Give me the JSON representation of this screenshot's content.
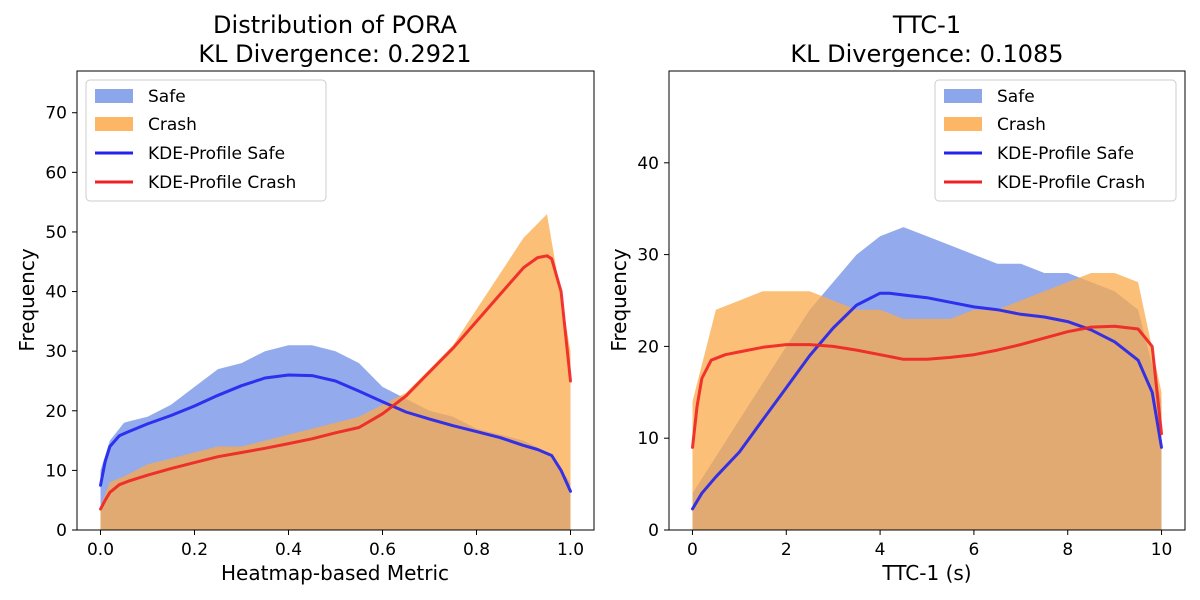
{
  "chart_data": [
    {
      "type": "bar",
      "title": "Distribution of PORA",
      "subtitle": "KL Divergence: 0.2921",
      "xlabel": "Heatmap-based Metric",
      "ylabel": "Frequency",
      "xlim": [
        -0.05,
        1.05
      ],
      "ylim": [
        0,
        77
      ],
      "xticks": [
        "0.0",
        "0.2",
        "0.4",
        "0.6",
        "0.8",
        "1.0"
      ],
      "xtick_values": [
        0,
        0.2,
        0.4,
        0.6,
        0.8,
        1.0
      ],
      "yticks": [
        "0",
        "10",
        "20",
        "30",
        "40",
        "50",
        "60",
        "70"
      ],
      "ytick_values": [
        0,
        10,
        20,
        30,
        40,
        50,
        60,
        70
      ],
      "legend": {
        "position": "top-left",
        "entries": [
          "Safe",
          "Crash",
          "KDE-Profile Safe",
          "KDE-Profile Crash"
        ]
      },
      "series": [
        {
          "name": "Safe",
          "kind": "histogram",
          "color": "#6f8ee6",
          "x": [
            0,
            0.02,
            0.05,
            0.1,
            0.15,
            0.2,
            0.25,
            0.3,
            0.35,
            0.4,
            0.45,
            0.5,
            0.55,
            0.6,
            0.65,
            0.7,
            0.75,
            0.8,
            0.85,
            0.9,
            0.95,
            1.0
          ],
          "values": [
            10,
            15,
            18,
            19,
            21,
            24,
            27,
            28,
            30,
            31,
            31,
            30,
            28,
            24,
            22,
            20,
            19,
            17,
            16,
            15,
            13,
            8
          ]
        },
        {
          "name": "Crash",
          "kind": "histogram",
          "color": "#fba94a",
          "x": [
            0,
            0.02,
            0.05,
            0.1,
            0.15,
            0.2,
            0.25,
            0.3,
            0.35,
            0.4,
            0.45,
            0.5,
            0.55,
            0.6,
            0.65,
            0.7,
            0.75,
            0.8,
            0.85,
            0.9,
            0.95,
            1.0
          ],
          "values": [
            4,
            8,
            9,
            11,
            12,
            13,
            14,
            14,
            15,
            16,
            17,
            18,
            19,
            21,
            23,
            27,
            31,
            37,
            43,
            49,
            53,
            30
          ]
        },
        {
          "name": "KDE-Profile Safe",
          "kind": "line",
          "color": "#2222ee",
          "x": [
            0,
            0.01,
            0.02,
            0.04,
            0.06,
            0.1,
            0.15,
            0.2,
            0.25,
            0.3,
            0.35,
            0.4,
            0.45,
            0.5,
            0.55,
            0.6,
            0.65,
            0.7,
            0.75,
            0.8,
            0.85,
            0.9,
            0.93,
            0.96,
            0.98,
            1.0
          ],
          "values": [
            7.5,
            11.5,
            14,
            15.8,
            16.5,
            17.8,
            19.2,
            20.8,
            22.6,
            24.2,
            25.5,
            26,
            25.9,
            25,
            23.3,
            21.5,
            19.8,
            18.6,
            17.5,
            16.5,
            15.5,
            14.2,
            13.5,
            12.5,
            10,
            6.5
          ]
        },
        {
          "name": "KDE-Profile Crash",
          "kind": "line",
          "color": "#ee2222",
          "x": [
            0,
            0.01,
            0.02,
            0.04,
            0.06,
            0.1,
            0.15,
            0.2,
            0.25,
            0.3,
            0.35,
            0.4,
            0.45,
            0.5,
            0.55,
            0.6,
            0.65,
            0.7,
            0.75,
            0.8,
            0.85,
            0.9,
            0.93,
            0.95,
            0.96,
            0.98,
            1.0
          ],
          "values": [
            3.5,
            5,
            6.3,
            7.6,
            8.2,
            9.2,
            10.3,
            11.3,
            12.3,
            13,
            13.7,
            14.5,
            15.3,
            16.3,
            17.2,
            19.5,
            22.5,
            26.5,
            30.5,
            35,
            39.5,
            44,
            45.7,
            46,
            45.5,
            40,
            25
          ]
        }
      ]
    },
    {
      "type": "bar",
      "title": "TTC-1",
      "subtitle": "KL Divergence: 0.1085",
      "xlabel": "TTC-1 (s)",
      "ylabel": "Frequency",
      "xlim": [
        -0.5,
        10.5
      ],
      "ylim": [
        0,
        50
      ],
      "xticks": [
        "0",
        "2",
        "4",
        "6",
        "8",
        "10"
      ],
      "xtick_values": [
        0,
        2,
        4,
        6,
        8,
        10
      ],
      "yticks": [
        "0",
        "10",
        "20",
        "30",
        "40"
      ],
      "ytick_values": [
        0,
        10,
        20,
        30,
        40
      ],
      "legend": {
        "position": "top-right",
        "entries": [
          "Safe",
          "Crash",
          "KDE-Profile Safe",
          "KDE-Profile Crash"
        ]
      },
      "series": [
        {
          "name": "Safe",
          "kind": "histogram",
          "color": "#6f8ee6",
          "x": [
            0,
            0.5,
            1,
            1.5,
            2,
            2.5,
            3,
            3.5,
            4,
            4.5,
            5,
            5.5,
            6,
            6.5,
            7,
            7.5,
            8,
            8.5,
            9,
            9.5,
            10
          ],
          "values": [
            4,
            8,
            12,
            16,
            20,
            24,
            27,
            30,
            32,
            33,
            32,
            31,
            30,
            29,
            29,
            28,
            28,
            27,
            26,
            24,
            14
          ]
        },
        {
          "name": "Crash",
          "kind": "histogram",
          "color": "#fba94a",
          "x": [
            0,
            0.5,
            1,
            1.5,
            2,
            2.5,
            3,
            3.5,
            4,
            4.5,
            5,
            5.5,
            6,
            6.5,
            7,
            7.5,
            8,
            8.5,
            9,
            9.5,
            10
          ],
          "values": [
            14,
            24,
            25,
            26,
            26,
            26,
            25,
            24,
            24,
            23,
            23,
            23,
            24,
            24,
            25,
            26,
            27,
            28,
            28,
            27,
            15
          ]
        },
        {
          "name": "KDE-Profile Safe",
          "kind": "line",
          "color": "#2222ee",
          "x": [
            0,
            0.2,
            0.5,
            1,
            1.5,
            2,
            2.5,
            3,
            3.5,
            4,
            4.2,
            4.5,
            5,
            5.5,
            6,
            6.5,
            7,
            7.5,
            8,
            8.5,
            9,
            9.5,
            9.8,
            10
          ],
          "values": [
            2.3,
            4,
            5.8,
            8.5,
            12,
            15.5,
            19,
            22,
            24.5,
            25.8,
            25.8,
            25.6,
            25.3,
            24.8,
            24.3,
            24,
            23.5,
            23.2,
            22.7,
            21.8,
            20.5,
            18.5,
            15,
            9
          ]
        },
        {
          "name": "KDE-Profile Crash",
          "kind": "line",
          "color": "#ee2222",
          "x": [
            0,
            0.1,
            0.2,
            0.4,
            0.7,
            1,
            1.5,
            2,
            2.5,
            3,
            3.5,
            4,
            4.5,
            5,
            5.5,
            6,
            6.5,
            7,
            7.5,
            8,
            8.5,
            9,
            9.5,
            9.8,
            10
          ],
          "values": [
            9,
            13.5,
            16.5,
            18.5,
            19.1,
            19.4,
            19.9,
            20.2,
            20.2,
            20,
            19.6,
            19.1,
            18.6,
            18.6,
            18.8,
            19.1,
            19.6,
            20.2,
            20.9,
            21.6,
            22.1,
            22.2,
            21.9,
            20,
            10.5
          ]
        }
      ]
    }
  ]
}
